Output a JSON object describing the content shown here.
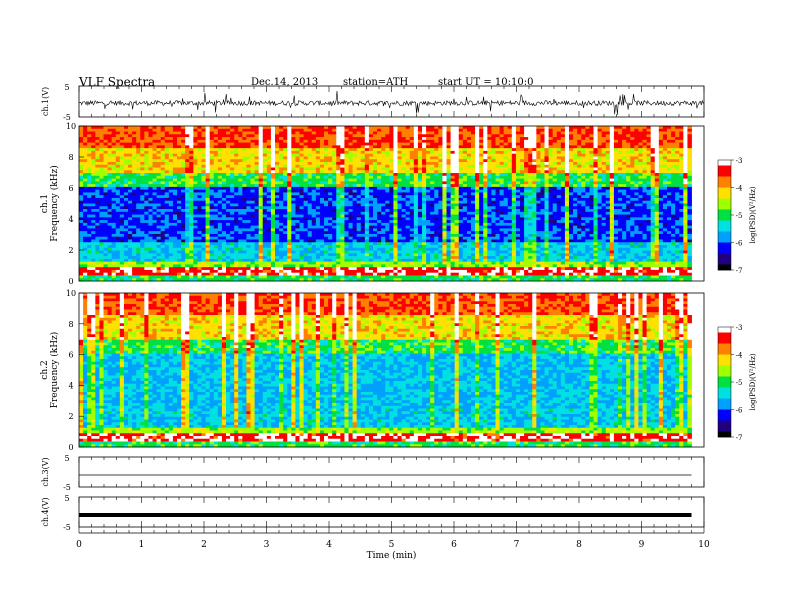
{
  "header": {
    "title": "VLF Spectra",
    "date": "Dec.14, 2013",
    "station": "station=ATH",
    "start": "start  UT  =    10:10:0"
  },
  "colors": {
    "colormap": [
      "#000000",
      "#1a0080",
      "#0000ff",
      "#00c8ff",
      "#00e040",
      "#c8ff00",
      "#ffd000",
      "#ff0000",
      "#ffffff"
    ]
  },
  "chart_data": [
    {
      "type": "line",
      "name": "ch1-waveform",
      "ylabel": "ch.1(V)",
      "ylim": [
        -5,
        5
      ],
      "y_ticks": [
        "5",
        "-5"
      ],
      "x_range": [
        0,
        10
      ],
      "baseline": -0.5
    },
    {
      "type": "heatmap",
      "name": "ch1-spectrogram",
      "ylabel_channel": "ch.1",
      "ylabel": "Frequency  (kHz)",
      "ylim": [
        0,
        10
      ],
      "y_ticks": [
        "0",
        "2",
        "4",
        "6",
        "8",
        "10"
      ],
      "x_range": [
        0,
        9.8
      ],
      "colorbar": {
        "label": "log(PSD)(V²/Hz)",
        "range": [
          -7,
          -3
        ],
        "ticks": [
          "-3",
          "-4",
          "-5",
          "-6",
          "-7"
        ]
      }
    },
    {
      "type": "heatmap",
      "name": "ch2-spectrogram",
      "ylabel_channel": "ch.2",
      "ylabel": "Frequency  (kHz)",
      "ylim": [
        0,
        10
      ],
      "y_ticks": [
        "0",
        "2",
        "4",
        "6",
        "8",
        "10"
      ],
      "x_range": [
        0,
        9.8
      ],
      "colorbar": {
        "label": "log(PSD)(V²/Hz)",
        "range": [
          -7,
          -3
        ],
        "ticks": [
          "-3",
          "-4",
          "-5",
          "-6",
          "-7"
        ]
      }
    },
    {
      "type": "line",
      "name": "ch3-waveform",
      "ylabel": "ch.3(V)",
      "ylim": [
        -5,
        5
      ],
      "y_ticks": [
        "5",
        "-5"
      ],
      "x_range": [
        0,
        9.8
      ],
      "baseline": -1
    },
    {
      "type": "line",
      "name": "ch4-waveform",
      "ylabel": "ch.4(V)",
      "ylim": [
        -5,
        5
      ],
      "y_ticks": [
        "5",
        "-5"
      ],
      "x_range": [
        0,
        9.8
      ],
      "baseline": -1
    }
  ],
  "x_axis": {
    "label": "Time  (min)",
    "range": [
      0,
      10
    ],
    "ticks": [
      "0",
      "1",
      "2",
      "3",
      "4",
      "5",
      "6",
      "7",
      "8",
      "9",
      "10"
    ]
  }
}
